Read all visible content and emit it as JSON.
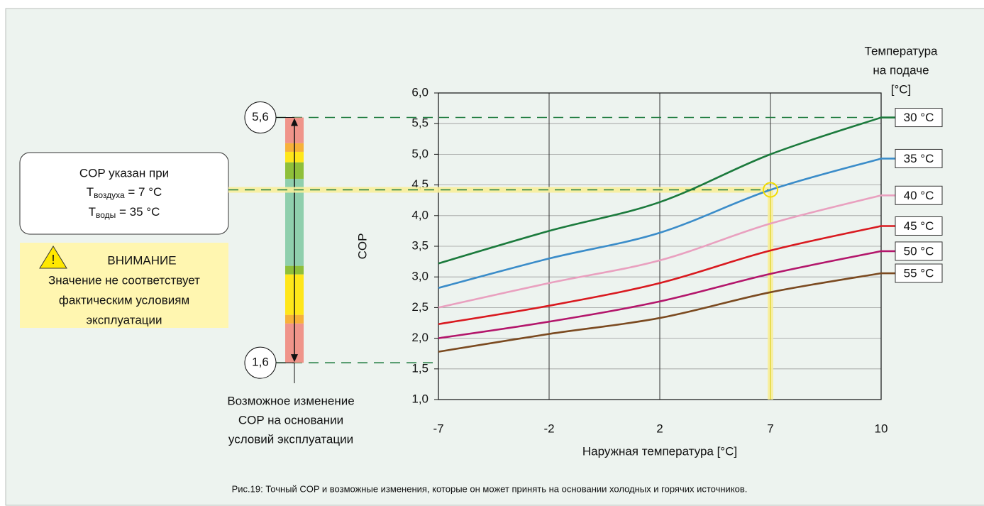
{
  "chart_data": {
    "type": "line",
    "x_label": "Наружная температура  [°C]",
    "y_label": "COP",
    "categories": [
      "-7",
      "-2",
      "2",
      "7",
      "10"
    ],
    "ylim": [
      1,
      6
    ],
    "yticks": [
      {
        "value": 1,
        "label": "1,0"
      },
      {
        "value": 1.5,
        "label": "1,5"
      },
      {
        "value": 2,
        "label": "2,0"
      },
      {
        "value": 2.5,
        "label": "2,5"
      },
      {
        "value": 3,
        "label": "3,0"
      },
      {
        "value": 3.5,
        "label": "3,5"
      },
      {
        "value": 4,
        "label": "4,0"
      },
      {
        "value": 4.5,
        "label": "4,5"
      },
      {
        "value": 5,
        "label": "5,0"
      },
      {
        "value": 5.5,
        "label": "5,5"
      },
      {
        "value": 6,
        "label": "6,0"
      }
    ],
    "grid": true,
    "legend_title": [
      "Температура",
      "на подаче",
      "[°C]"
    ],
    "series": [
      {
        "name": "30 °C",
        "color": "#1b7a3c",
        "values": [
          3.22,
          3.75,
          4.22,
          5.0,
          5.6
        ]
      },
      {
        "name": "35 °C",
        "color": "#3a8cc9",
        "values": [
          2.82,
          3.3,
          3.72,
          4.42,
          4.93
        ]
      },
      {
        "name": "40 °C",
        "color": "#e9a0bf",
        "values": [
          2.5,
          2.9,
          3.27,
          3.87,
          4.33
        ]
      },
      {
        "name": "45 °C",
        "color": "#d9191f",
        "values": [
          2.23,
          2.53,
          2.9,
          3.43,
          3.83
        ]
      },
      {
        "name": "50 °C",
        "color": "#b3166b",
        "values": [
          2.0,
          2.27,
          2.6,
          3.05,
          3.42
        ]
      },
      {
        "name": "55 °C",
        "color": "#7b4a20",
        "values": [
          1.78,
          2.07,
          2.33,
          2.75,
          3.06
        ]
      }
    ],
    "highlight": {
      "series": 1,
      "index": 3,
      "color": "#f7ee9a"
    },
    "range": {
      "max": 5.6,
      "max_label": "5,6",
      "min": 1.6,
      "min_label": "1,6",
      "caption": [
        "Возможное изменение",
        "COP на основании",
        "условий эксплуатации"
      ]
    },
    "info_box": {
      "title": "COP указан при",
      "rows": [
        {
          "symbol": "T",
          "sub": "воздуха",
          "rest": " = 7 °C"
        },
        {
          "symbol": "T",
          "sub": "воды",
          "rest": " = 35 °C"
        }
      ]
    },
    "warning": {
      "title": "ВНИМАНИЕ",
      "lines": [
        "Значение не соответствует",
        "фактическим условиям",
        "эксплуатации"
      ]
    },
    "caption": "Рис.19: Точный COP и возможные изменения, которые он может принять на основании холодных и горячих источников."
  }
}
